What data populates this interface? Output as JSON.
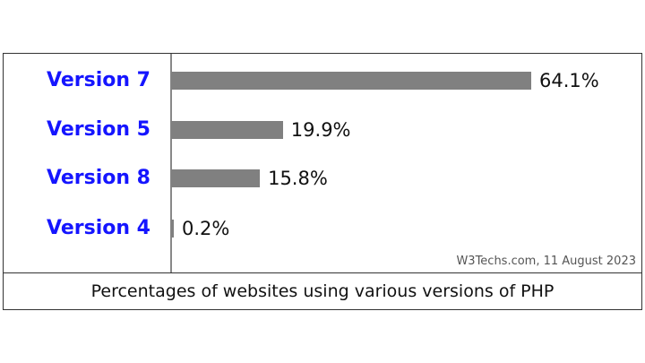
{
  "chart_data": {
    "type": "bar",
    "orientation": "horizontal",
    "categories": [
      "Version 7",
      "Version 5",
      "Version 8",
      "Version 4"
    ],
    "values": [
      64.1,
      19.9,
      15.8,
      0.2
    ],
    "value_labels": [
      "64.1%",
      "19.9%",
      "15.8%",
      "0.2%"
    ],
    "unit": "%",
    "title": "Percentages of websites using various versions of PHP",
    "source": "W3Techs.com, 11 August 2023",
    "xlim": [
      0,
      100
    ],
    "grid": false,
    "bar_color": "#808080",
    "label_color": "#1515ff"
  }
}
